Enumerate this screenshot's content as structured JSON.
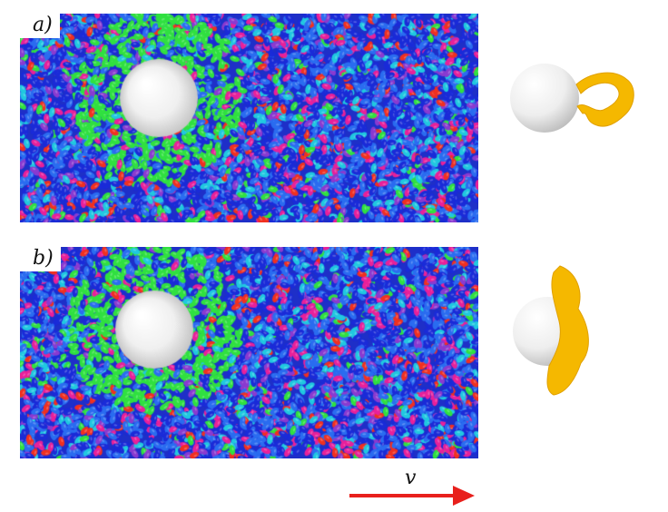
{
  "panels": [
    {
      "label": "a)",
      "colors": [
        "#1a2bd8",
        "#2a6cf0",
        "#20c8e0",
        "#30e040",
        "#e8209a",
        "#f03020",
        "#8a3ad0"
      ]
    },
    {
      "label": "b)",
      "colors": [
        "#1a2bd8",
        "#2a6cf0",
        "#20c8e0",
        "#30e040",
        "#e8209a",
        "#f03020",
        "#8a3ad0"
      ]
    }
  ],
  "velocity": {
    "label": "v",
    "color": "#e8201c"
  },
  "defect_color": "#f5b800"
}
